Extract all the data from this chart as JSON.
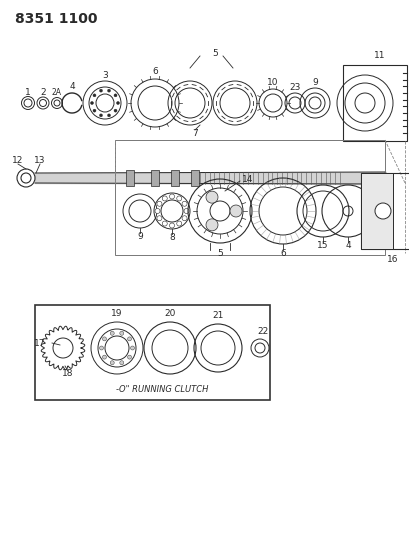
{
  "title": "8351 1100",
  "bg_color": "#ffffff",
  "line_color": "#2a2a2a",
  "title_fontsize": 10,
  "label_fontsize": 6.5,
  "inset_text": "-O\" RUNNING CLUTCH"
}
